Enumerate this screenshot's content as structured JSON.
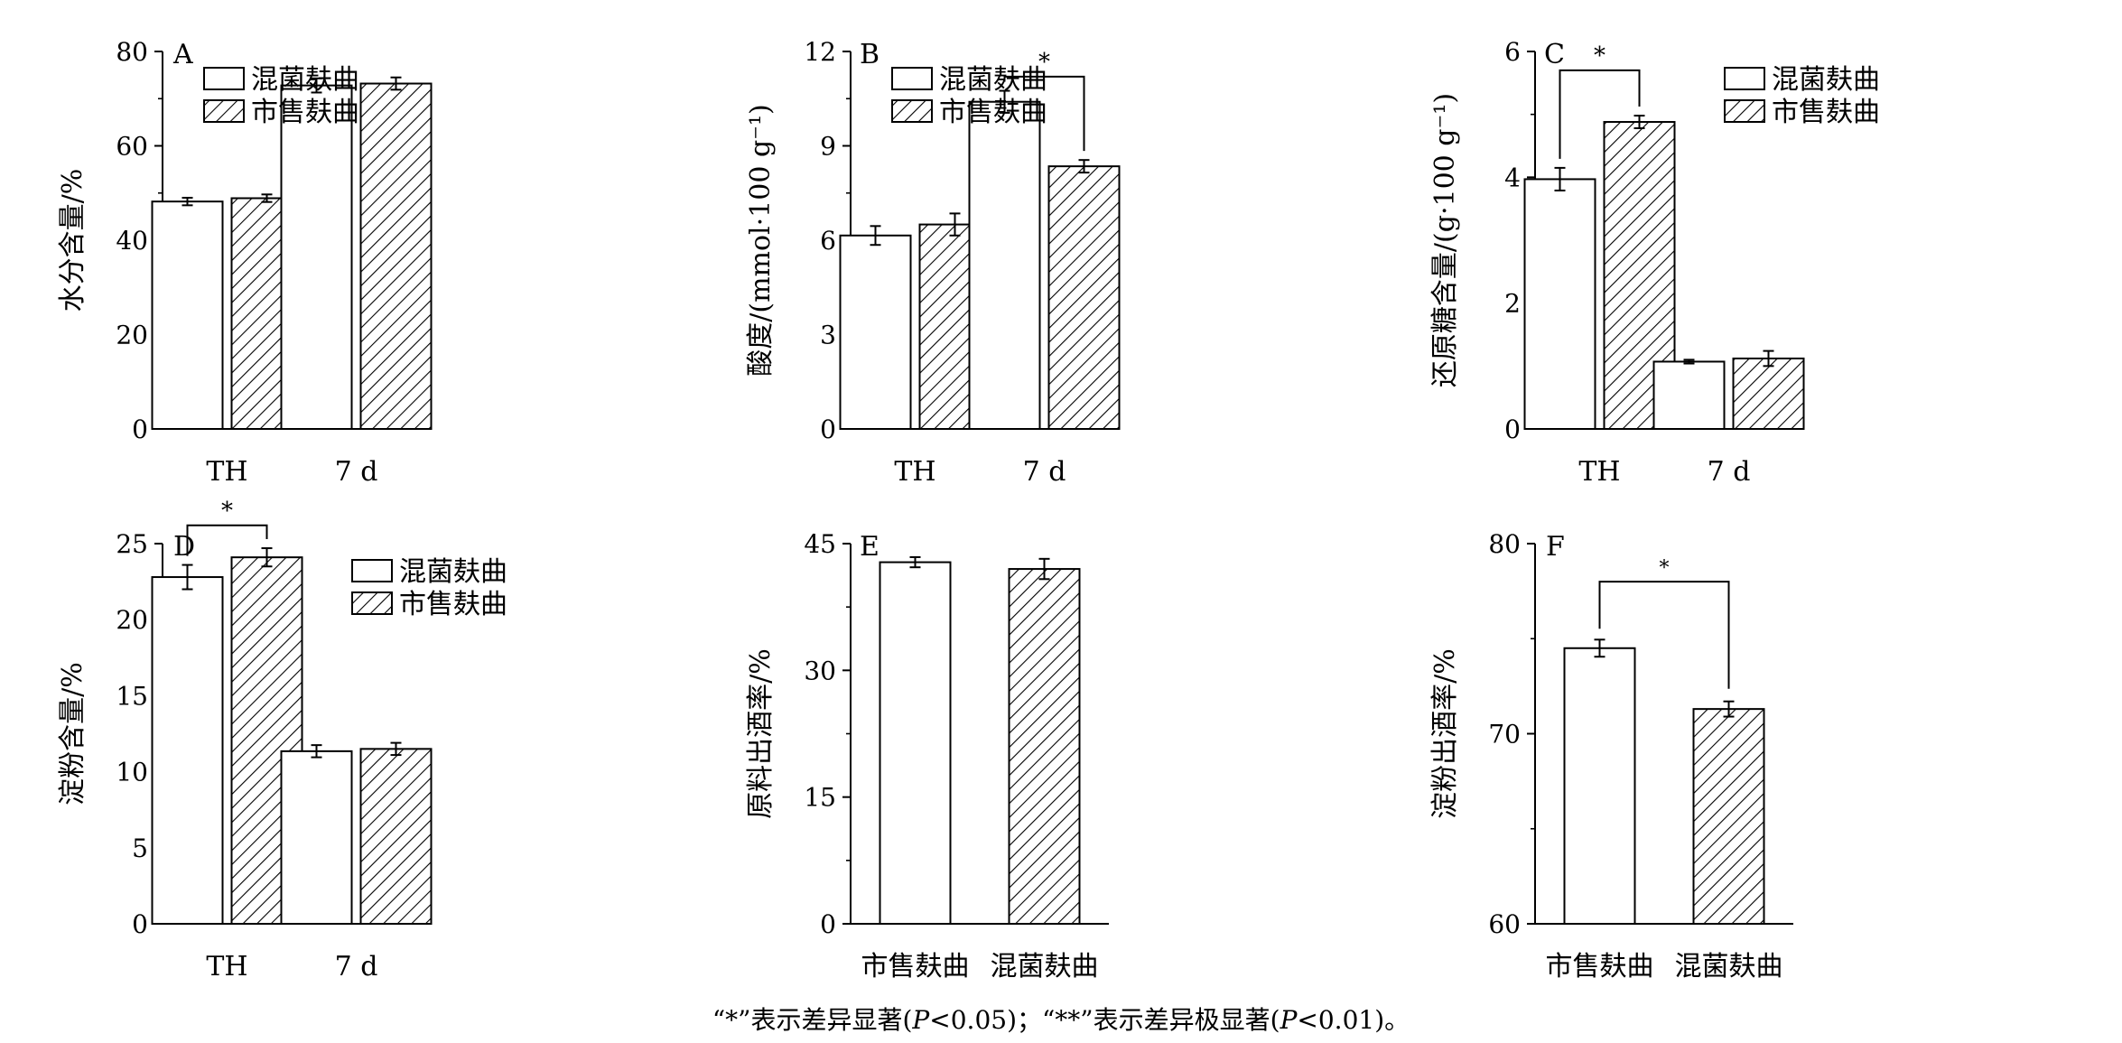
{
  "legend_labels": [
    "混菌麸曲",
    "市售麸曲"
  ],
  "caption": {
    "part1": "“*”表示差异显著(",
    "p": "P",
    "part2": "<0.05)；“**”表示差异极显著(",
    "p2": "P",
    "part3": "<0.01)。"
  },
  "chart_data": [
    {
      "id": "A",
      "type": "bar",
      "ylabel": "水分含量/%",
      "ylim": [
        0,
        80
      ],
      "yticks": [
        0,
        20,
        40,
        60,
        80
      ],
      "categories": [
        "TH",
        "7 d"
      ],
      "series": [
        {
          "name": "混菌麸曲",
          "pattern": "open",
          "values": [
            48.2,
            72.8
          ],
          "errors": [
            0.8,
            1.5
          ]
        },
        {
          "name": "市售麸曲",
          "pattern": "hatch",
          "values": [
            48.9,
            73.2
          ],
          "errors": [
            0.8,
            1.3
          ]
        }
      ],
      "legend": "top-left",
      "significance": []
    },
    {
      "id": "B",
      "type": "bar",
      "ylabel": "酸度/(mmol·100 g⁻¹)",
      "ylim": [
        0,
        12
      ],
      "yticks": [
        0,
        3,
        6,
        9,
        12
      ],
      "categories": [
        "TH",
        "7 d"
      ],
      "series": [
        {
          "name": "混菌麸曲",
          "pattern": "open",
          "values": [
            6.15,
            10.4
          ],
          "errors": [
            0.3,
            0.35
          ]
        },
        {
          "name": "市售麸曲",
          "pattern": "hatch",
          "values": [
            6.5,
            8.35
          ],
          "errors": [
            0.35,
            0.2
          ]
        }
      ],
      "legend": "top-left",
      "significance": [
        {
          "category": 1,
          "top": 11.2,
          "label": "*"
        }
      ]
    },
    {
      "id": "C",
      "type": "bar",
      "ylabel": "还原糖含量/(g·100 g⁻¹)",
      "ylim": [
        0,
        6
      ],
      "yticks": [
        0,
        2,
        4,
        6
      ],
      "categories": [
        "TH",
        "7 d"
      ],
      "series": [
        {
          "name": "混菌麸曲",
          "pattern": "open",
          "values": [
            3.97,
            1.07
          ],
          "errors": [
            0.18,
            0.03
          ]
        },
        {
          "name": "市售麸曲",
          "pattern": "hatch",
          "values": [
            4.88,
            1.12
          ],
          "errors": [
            0.1,
            0.12
          ]
        }
      ],
      "legend": "top-right",
      "significance": [
        {
          "category": 0,
          "top": 5.7,
          "label": "*"
        }
      ]
    },
    {
      "id": "D",
      "type": "bar",
      "ylabel": "淀粉含量/%",
      "ylim": [
        0,
        25
      ],
      "yticks": [
        0,
        5,
        10,
        15,
        20,
        25
      ],
      "categories": [
        "TH",
        "7 d"
      ],
      "series": [
        {
          "name": "混菌麸曲",
          "pattern": "open",
          "values": [
            22.8,
            11.35
          ],
          "errors": [
            0.8,
            0.4
          ]
        },
        {
          "name": "市售麸曲",
          "pattern": "hatch",
          "values": [
            24.1,
            11.5
          ],
          "errors": [
            0.6,
            0.4
          ]
        }
      ],
      "legend": "top-right",
      "significance": [
        {
          "category": 0,
          "top": 26.2,
          "label": "*"
        }
      ]
    },
    {
      "id": "E",
      "type": "bar",
      "ylabel": "原料出酒率/%",
      "ylim": [
        0,
        45
      ],
      "yticks": [
        0,
        15,
        30,
        45
      ],
      "categories": [
        "市售麸曲",
        "混菌麸曲"
      ],
      "values": [
        42.8,
        42.0
      ],
      "errors": [
        0.6,
        1.2
      ],
      "patterns": [
        "open",
        "hatch"
      ],
      "significance": []
    },
    {
      "id": "F",
      "type": "bar",
      "ylabel": "淀粉出酒率/%",
      "ylim": [
        60,
        80
      ],
      "yticks": [
        60,
        70,
        80
      ],
      "categories": [
        "市售麸曲",
        "混菌麸曲"
      ],
      "values": [
        74.5,
        71.3
      ],
      "errors": [
        0.45,
        0.4
      ],
      "patterns": [
        "open",
        "hatch"
      ],
      "significance": [
        {
          "pair": [
            0,
            1
          ],
          "top": 78.0,
          "label": "*"
        }
      ]
    }
  ]
}
